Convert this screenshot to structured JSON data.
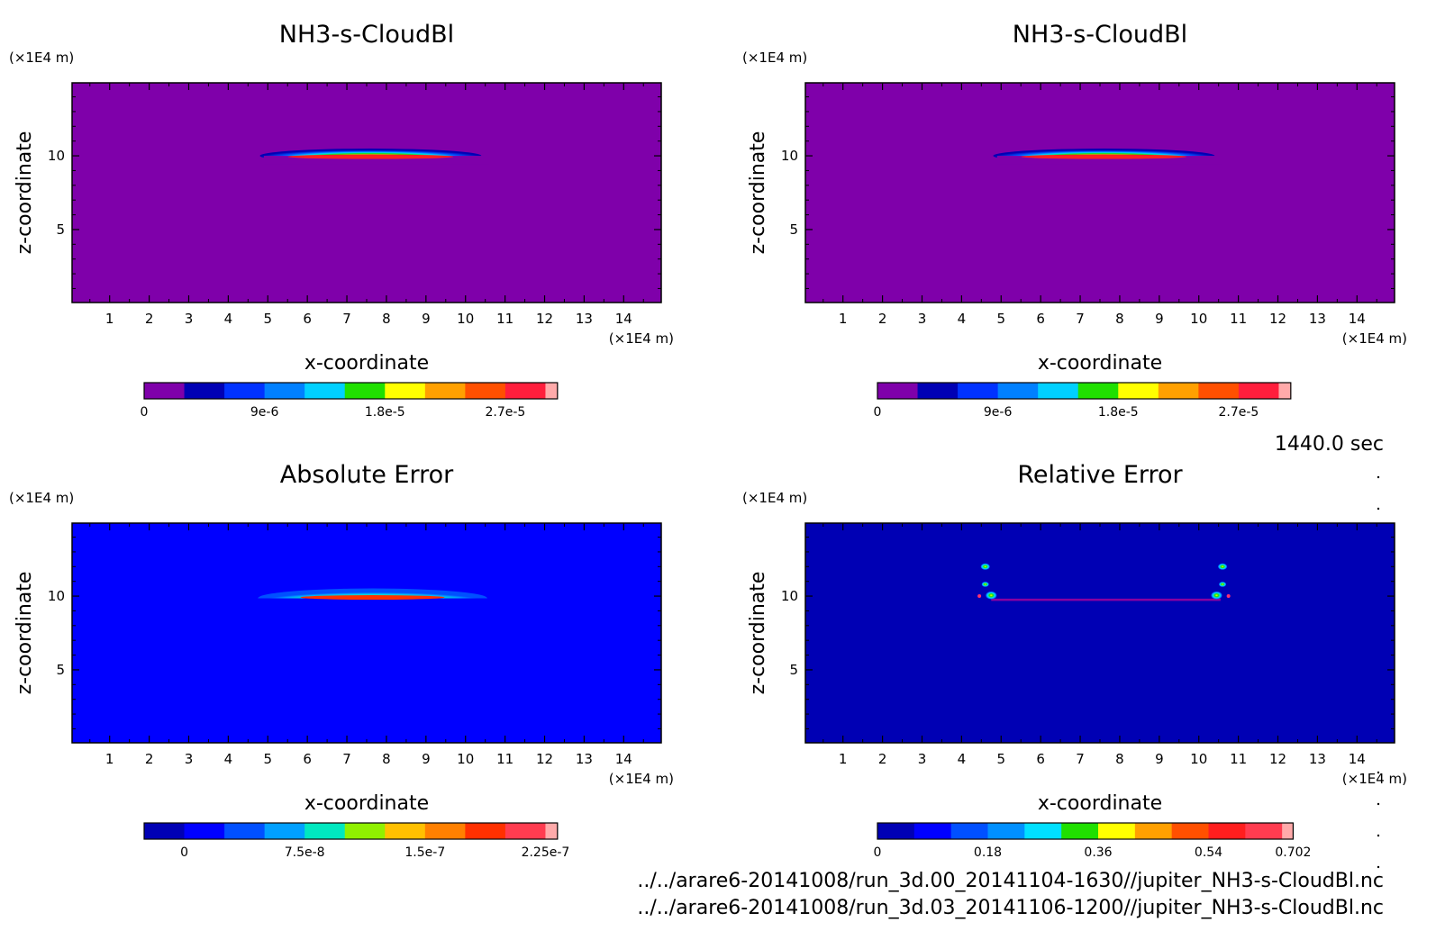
{
  "footer": {
    "time_label": "1440.0 sec",
    "file_1": "../../arare6-20141008/run_3d.00_20141104-1630//jupiter_NH3-s-CloudBl.nc",
    "file_2": "../../arare6-20141008/run_3d.03_20141106-1200//jupiter_NH3-s-CloudBl.nc"
  },
  "chart_data": [
    {
      "type": "heatmap",
      "title": "NH3-s-CloudBl",
      "xlabel": "x-coordinate",
      "ylabel": "z-coordinate",
      "x_unit": "(×1E4 m)",
      "y_unit": "(×1E4 m)",
      "xlim": [
        0.05,
        14.95
      ],
      "ylim": [
        0.05,
        14.95
      ],
      "x_ticks": [
        1,
        2,
        3,
        4,
        5,
        6,
        7,
        8,
        9,
        10,
        11,
        12,
        13,
        14
      ],
      "y_ticks": [
        5,
        10
      ],
      "background_color": "#7f00aa",
      "feature": "thin lens-shaped cloud layer at z≈10, x≈5–10.5, peak near x≈7.5",
      "colorbar": {
        "ticks": [
          "0",
          "9e-6",
          "1.8e-5",
          "2.7e-5"
        ],
        "colors": [
          "#7f00aa",
          "#0000b4",
          "#0032ff",
          "#0080ff",
          "#00d0ff",
          "#20e000",
          "#ffff00",
          "#ffa000",
          "#ff5000",
          "#ff1e3c",
          "#ffaaaa"
        ]
      }
    },
    {
      "type": "heatmap",
      "title": "NH3-s-CloudBl",
      "xlabel": "x-coordinate",
      "ylabel": "z-coordinate",
      "x_unit": "(×1E4 m)",
      "y_unit": "(×1E4 m)",
      "xlim": [
        0.05,
        14.95
      ],
      "ylim": [
        0.05,
        14.95
      ],
      "x_ticks": [
        1,
        2,
        3,
        4,
        5,
        6,
        7,
        8,
        9,
        10,
        11,
        12,
        13,
        14
      ],
      "y_ticks": [
        5,
        10
      ],
      "background_color": "#7f00aa",
      "feature": "thin lens-shaped cloud layer at z≈10, x≈5–10.5, peak near x≈7.5",
      "colorbar": {
        "ticks": [
          "0",
          "9e-6",
          "1.8e-5",
          "2.7e-5"
        ],
        "colors": [
          "#7f00aa",
          "#0000b4",
          "#0032ff",
          "#0080ff",
          "#00d0ff",
          "#20e000",
          "#ffff00",
          "#ffa000",
          "#ff5000",
          "#ff1e3c",
          "#ffaaaa"
        ]
      }
    },
    {
      "type": "heatmap",
      "title": "Absolute Error",
      "xlabel": "x-coordinate",
      "ylabel": "z-coordinate",
      "x_unit": "(×1E4 m)",
      "y_unit": "(×1E4 m)",
      "xlim": [
        0.05,
        14.95
      ],
      "ylim": [
        0.05,
        14.95
      ],
      "x_ticks": [
        1,
        2,
        3,
        4,
        5,
        6,
        7,
        8,
        9,
        10,
        11,
        12,
        13,
        14
      ],
      "y_ticks": [
        5,
        10
      ],
      "background_color": "#0000ff",
      "feature": "thin lens-shaped error layer at z≈10, x≈5–10.5",
      "colorbar": {
        "ticks": [
          "0",
          "7.5e-8",
          "1.5e-7",
          "2.25e-7"
        ],
        "colors": [
          "#0000b4",
          "#0000ff",
          "#0050ff",
          "#00a0ff",
          "#00e8c0",
          "#90f000",
          "#ffc000",
          "#ff8000",
          "#ff3000",
          "#ff3c50",
          "#ffaaaa"
        ]
      }
    },
    {
      "type": "heatmap",
      "title": "Relative Error",
      "xlabel": "x-coordinate",
      "ylabel": "z-coordinate",
      "x_unit": "(×1E4 m)",
      "y_unit": "(×1E4 m)",
      "xlim": [
        0.05,
        14.95
      ],
      "ylim": [
        0.05,
        14.95
      ],
      "x_ticks": [
        1,
        2,
        3,
        4,
        5,
        6,
        7,
        8,
        9,
        10,
        11,
        12,
        13,
        14
      ],
      "y_ticks": [
        5,
        10
      ],
      "background_color": "#0000b4",
      "feature": "small spots near x≈4.6 and x≈10.6 at z≈10–12, thin purple line at z≈9.7",
      "colorbar": {
        "ticks": [
          "0",
          "0.18",
          "0.36",
          "0.54",
          "0.702"
        ],
        "colors": [
          "#0000b4",
          "#0000ff",
          "#0050ff",
          "#0090ff",
          "#00e0ff",
          "#20e000",
          "#ffff00",
          "#ffa000",
          "#ff5000",
          "#ff1e1e",
          "#ff3c50",
          "#ffaaaa"
        ]
      }
    }
  ]
}
